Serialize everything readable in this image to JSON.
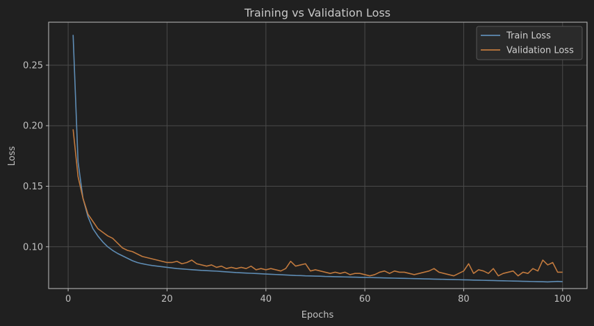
{
  "chart_data": {
    "type": "line",
    "title": "Training vs Validation Loss",
    "xlabel": "Epochs",
    "ylabel": "Loss",
    "xlim": [
      -3.95,
      104.95
    ],
    "ylim": [
      0.0655,
      0.2855
    ],
    "x_ticks": [
      0,
      20,
      40,
      60,
      80,
      100
    ],
    "y_ticks": [
      0.1,
      0.15,
      0.2,
      0.25
    ],
    "grid": true,
    "legend_position": "top-right",
    "x": [
      1,
      2,
      3,
      4,
      5,
      6,
      7,
      8,
      9,
      10,
      11,
      12,
      13,
      14,
      15,
      16,
      17,
      18,
      19,
      20,
      21,
      22,
      23,
      24,
      25,
      26,
      27,
      28,
      29,
      30,
      31,
      32,
      33,
      34,
      35,
      36,
      37,
      38,
      39,
      40,
      41,
      42,
      43,
      44,
      45,
      46,
      47,
      48,
      49,
      50,
      51,
      52,
      53,
      54,
      55,
      56,
      57,
      58,
      59,
      60,
      61,
      62,
      63,
      64,
      65,
      66,
      67,
      68,
      69,
      70,
      71,
      72,
      73,
      74,
      75,
      76,
      77,
      78,
      79,
      80,
      81,
      82,
      83,
      84,
      85,
      86,
      87,
      88,
      89,
      90,
      91,
      92,
      93,
      94,
      95,
      96,
      97,
      98,
      99,
      100
    ],
    "series": [
      {
        "name": "Train Loss",
        "color": "#5f8db5",
        "values": [
          0.275,
          0.17,
          0.14,
          0.125,
          0.115,
          0.109,
          0.104,
          0.1,
          0.097,
          0.0945,
          0.0925,
          0.0905,
          0.0885,
          0.087,
          0.086,
          0.0852,
          0.0845,
          0.084,
          0.0835,
          0.083,
          0.0825,
          0.082,
          0.0817,
          0.0814,
          0.0811,
          0.0808,
          0.0805,
          0.0803,
          0.0801,
          0.0799,
          0.0796,
          0.0793,
          0.079,
          0.0787,
          0.0785,
          0.0783,
          0.0781,
          0.0779,
          0.0777,
          0.0775,
          0.0773,
          0.0771,
          0.0769,
          0.0767,
          0.0765,
          0.0763,
          0.0762,
          0.076,
          0.0759,
          0.0758,
          0.0757,
          0.0755,
          0.0754,
          0.0753,
          0.0752,
          0.0751,
          0.075,
          0.0749,
          0.0748,
          0.0747,
          0.0746,
          0.0745,
          0.0744,
          0.0743,
          0.0742,
          0.0741,
          0.074,
          0.0739,
          0.0738,
          0.0737,
          0.0736,
          0.0735,
          0.0734,
          0.0733,
          0.0732,
          0.0731,
          0.073,
          0.0729,
          0.0728,
          0.0727,
          0.0726,
          0.0725,
          0.0724,
          0.0723,
          0.0722,
          0.0721,
          0.072,
          0.0719,
          0.0718,
          0.0717,
          0.0716,
          0.0715,
          0.0714,
          0.0713,
          0.0712,
          0.0711,
          0.071,
          0.0712,
          0.0714,
          0.0712
        ]
      },
      {
        "name": "Validation Loss",
        "color": "#c27a3e",
        "values": [
          0.197,
          0.158,
          0.14,
          0.127,
          0.121,
          0.115,
          0.112,
          0.109,
          0.107,
          0.103,
          0.099,
          0.097,
          0.096,
          0.094,
          0.092,
          0.091,
          0.09,
          0.089,
          0.088,
          0.087,
          0.087,
          0.088,
          0.086,
          0.087,
          0.089,
          0.086,
          0.085,
          0.084,
          0.085,
          0.083,
          0.084,
          0.082,
          0.083,
          0.082,
          0.083,
          0.082,
          0.084,
          0.081,
          0.082,
          0.081,
          0.082,
          0.081,
          0.08,
          0.082,
          0.088,
          0.084,
          0.085,
          0.086,
          0.08,
          0.081,
          0.08,
          0.079,
          0.078,
          0.079,
          0.078,
          0.079,
          0.077,
          0.078,
          0.078,
          0.077,
          0.076,
          0.077,
          0.079,
          0.08,
          0.078,
          0.08,
          0.079,
          0.079,
          0.078,
          0.077,
          0.078,
          0.079,
          0.08,
          0.082,
          0.079,
          0.078,
          0.077,
          0.076,
          0.078,
          0.08,
          0.086,
          0.078,
          0.081,
          0.08,
          0.078,
          0.082,
          0.076,
          0.078,
          0.079,
          0.08,
          0.076,
          0.079,
          0.078,
          0.082,
          0.08,
          0.089,
          0.085,
          0.087,
          0.079,
          0.079
        ]
      }
    ]
  }
}
